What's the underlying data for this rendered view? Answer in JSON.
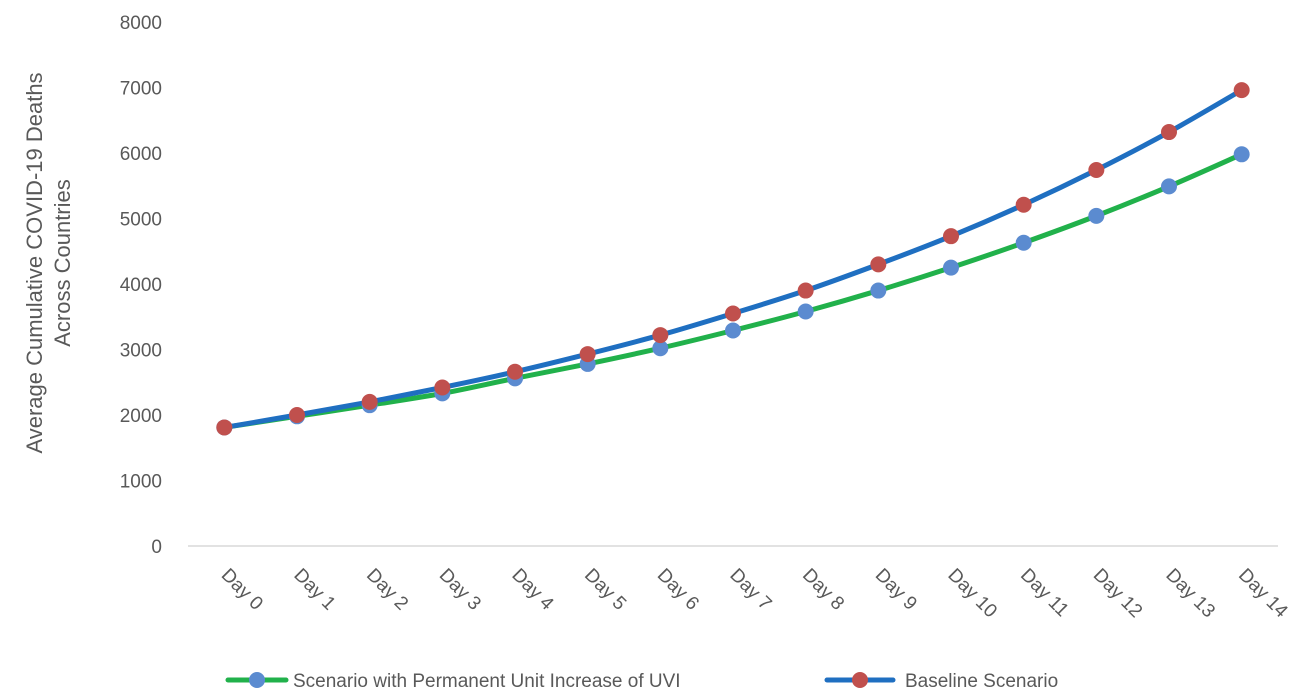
{
  "chart_data": {
    "type": "line",
    "title": "",
    "xlabel": "",
    "ylabel_lines": [
      "Average Cumulative COVID-19 Deaths",
      "Across Countries"
    ],
    "categories": [
      "Day 0",
      "Day 1",
      "Day 2",
      "Day 3",
      "Day 4",
      "Day 5",
      "Day 6",
      "Day 7",
      "Day 8",
      "Day 9",
      "Day 10",
      "Day 11",
      "Day 12",
      "Day 13",
      "Day 14"
    ],
    "ylim": [
      0,
      8000
    ],
    "yticks": [
      0,
      1000,
      2000,
      3000,
      4000,
      5000,
      6000,
      7000,
      8000
    ],
    "grid": false,
    "legend_position": "bottom",
    "series": [
      {
        "name": "Scenario with Permanent Unit Increase of UVI",
        "line_color": "#21B14B",
        "marker_color": "#5B8BD0",
        "values": [
          1810,
          1980,
          2150,
          2330,
          2560,
          2780,
          3020,
          3290,
          3580,
          3900,
          4250,
          4630,
          5040,
          5490,
          5980
        ]
      },
      {
        "name": "Baseline Scenario",
        "line_color": "#1F6FC1",
        "marker_color": "#C0504D",
        "values": [
          1810,
          2000,
          2200,
          2420,
          2660,
          2930,
          3220,
          3550,
          3900,
          4300,
          4730,
          5210,
          5740,
          6320,
          6960
        ]
      }
    ]
  }
}
